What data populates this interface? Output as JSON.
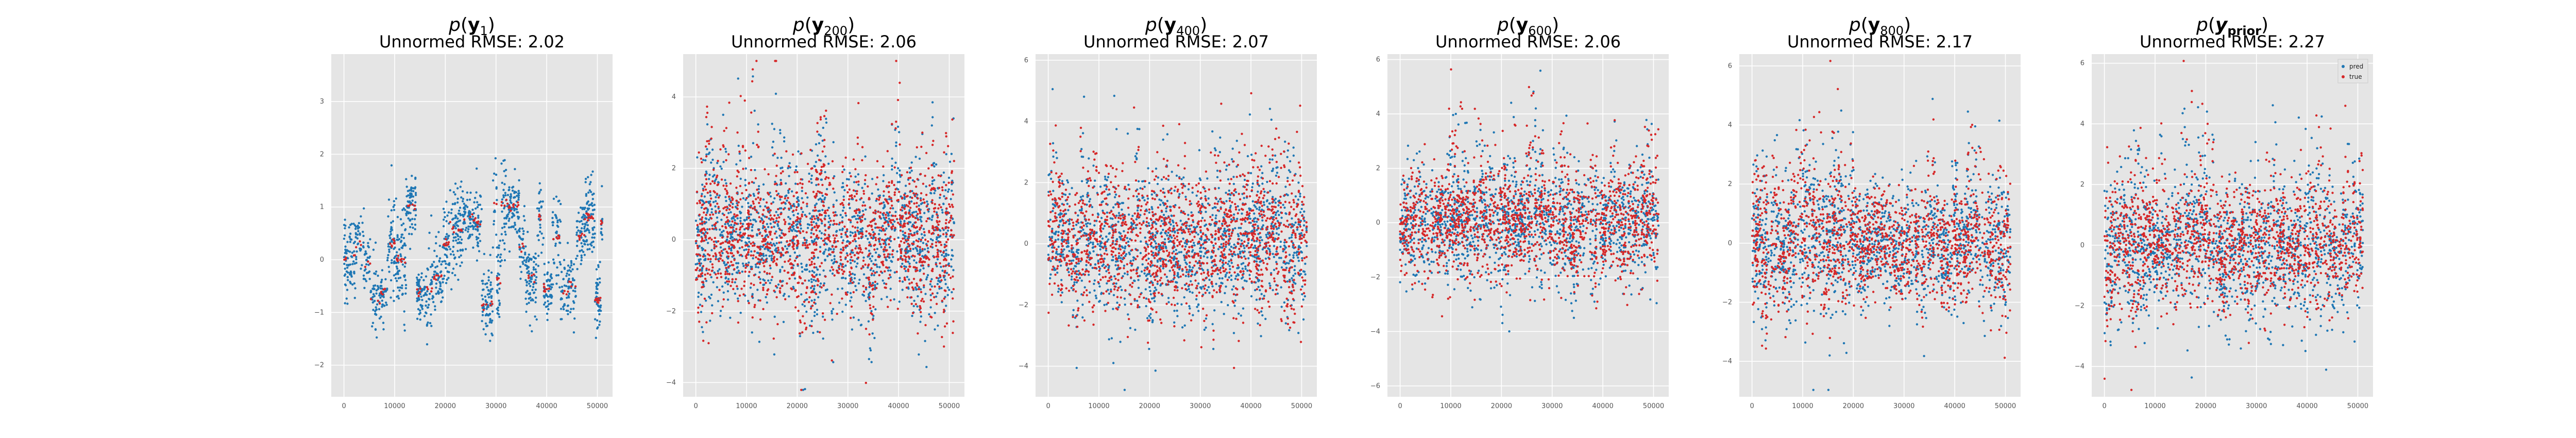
{
  "colors": {
    "pred": "#1f77b4",
    "true": "#d62728",
    "panel_bg": "#e5e5e5",
    "grid": "#ffffff",
    "tick": "#555555"
  },
  "chart_data": [
    {
      "type": "scatter",
      "title_main": "p(y",
      "title_sub": "1",
      "title_close": ")",
      "subtitle": "Unnormed RMSE: 2.02",
      "xlim": [
        -2500,
        53000
      ],
      "ylim": [
        -2.6,
        3.9
      ],
      "xticks": [
        0,
        10000,
        20000,
        30000,
        40000,
        50000
      ],
      "xtick_labels": [
        "0",
        "10000",
        "20000",
        "30000",
        "40000",
        "50000"
      ],
      "yticks": [
        -2,
        -1,
        0,
        1,
        2,
        3
      ],
      "ytick_labels": [
        "−2",
        "−1",
        "0",
        "1",
        "2",
        "3"
      ],
      "series": [
        {
          "name": "pred",
          "spread": 1.0
        },
        {
          "name": "true",
          "spread": 0.08
        }
      ],
      "legend": false
    },
    {
      "type": "scatter",
      "title_main": "p(y",
      "title_sub": "200",
      "title_close": ")",
      "subtitle": "Unnormed RMSE: 2.06",
      "xlim": [
        -2500,
        53000
      ],
      "ylim": [
        -4.4,
        5.2
      ],
      "xticks": [
        0,
        10000,
        20000,
        30000,
        40000,
        50000
      ],
      "xtick_labels": [
        "0",
        "10000",
        "20000",
        "30000",
        "40000",
        "50000"
      ],
      "yticks": [
        -4,
        -2,
        0,
        2,
        4
      ],
      "ytick_labels": [
        "−4",
        "−2",
        "0",
        "2",
        "4"
      ],
      "series": [
        {
          "name": "pred",
          "spread": 1.0
        },
        {
          "name": "true",
          "spread": 1.0
        }
      ],
      "legend": false
    },
    {
      "type": "scatter",
      "title_main": "p(y",
      "title_sub": "400",
      "title_close": ")",
      "subtitle": "Unnormed RMSE: 2.07",
      "xlim": [
        -2500,
        53000
      ],
      "ylim": [
        -5.0,
        6.2
      ],
      "xticks": [
        0,
        10000,
        20000,
        30000,
        40000,
        50000
      ],
      "xtick_labels": [
        "0",
        "10000",
        "20000",
        "30000",
        "40000",
        "50000"
      ],
      "yticks": [
        -4,
        -2,
        0,
        2,
        4,
        6
      ],
      "ytick_labels": [
        "−4",
        "−2",
        "0",
        "2",
        "4",
        "6"
      ],
      "series": [
        {
          "name": "pred",
          "spread": 1.0
        },
        {
          "name": "true",
          "spread": 1.0
        }
      ],
      "legend": false
    },
    {
      "type": "scatter",
      "title_main": "p(y",
      "title_sub": "600",
      "title_close": ")",
      "subtitle": "Unnormed RMSE: 2.06",
      "xlim": [
        -2500,
        53000
      ],
      "ylim": [
        -6.4,
        6.2
      ],
      "xticks": [
        0,
        10000,
        20000,
        30000,
        40000,
        50000
      ],
      "xtick_labels": [
        "0",
        "10000",
        "20000",
        "30000",
        "40000",
        "50000"
      ],
      "yticks": [
        -6,
        -4,
        -2,
        0,
        2,
        4,
        6
      ],
      "ytick_labels": [
        "−6",
        "−4",
        "−2",
        "0",
        "2",
        "4",
        "6"
      ],
      "series": [
        {
          "name": "pred",
          "spread": 1.0
        },
        {
          "name": "true",
          "spread": 1.0
        }
      ],
      "legend": false
    },
    {
      "type": "scatter",
      "title_main": "p(y",
      "title_sub": "800",
      "title_close": ")",
      "subtitle": "Unnormed RMSE: 2.17",
      "xlim": [
        -2500,
        53000
      ],
      "ylim": [
        -5.2,
        6.4
      ],
      "xticks": [
        0,
        10000,
        20000,
        30000,
        40000,
        50000
      ],
      "xtick_labels": [
        "0",
        "10000",
        "20000",
        "30000",
        "40000",
        "50000"
      ],
      "yticks": [
        -4,
        -2,
        0,
        2,
        4,
        6
      ],
      "ytick_labels": [
        "−4",
        "−2",
        "0",
        "2",
        "4",
        "6"
      ],
      "series": [
        {
          "name": "pred",
          "spread": 1.0
        },
        {
          "name": "true",
          "spread": 1.0
        }
      ],
      "legend": false
    },
    {
      "type": "scatter",
      "title_main": "p(y",
      "title_sub": "prior",
      "title_close": ")",
      "subtitle": "Unnormed RMSE: 2.27",
      "xlim": [
        -2500,
        53000
      ],
      "ylim": [
        -5.0,
        6.3
      ],
      "xticks": [
        0,
        10000,
        20000,
        30000,
        40000,
        50000
      ],
      "xtick_labels": [
        "0",
        "10000",
        "20000",
        "30000",
        "40000",
        "50000"
      ],
      "yticks": [
        -4,
        -2,
        0,
        2,
        4,
        6
      ],
      "ytick_labels": [
        "−4",
        "−2",
        "0",
        "2",
        "4",
        "6"
      ],
      "series": [
        {
          "name": "pred",
          "spread": 1.0
        },
        {
          "name": "true",
          "spread": 1.0
        }
      ],
      "legend": true,
      "legend_position": "top-right",
      "legend_entries": [
        "pred",
        "true"
      ]
    }
  ]
}
